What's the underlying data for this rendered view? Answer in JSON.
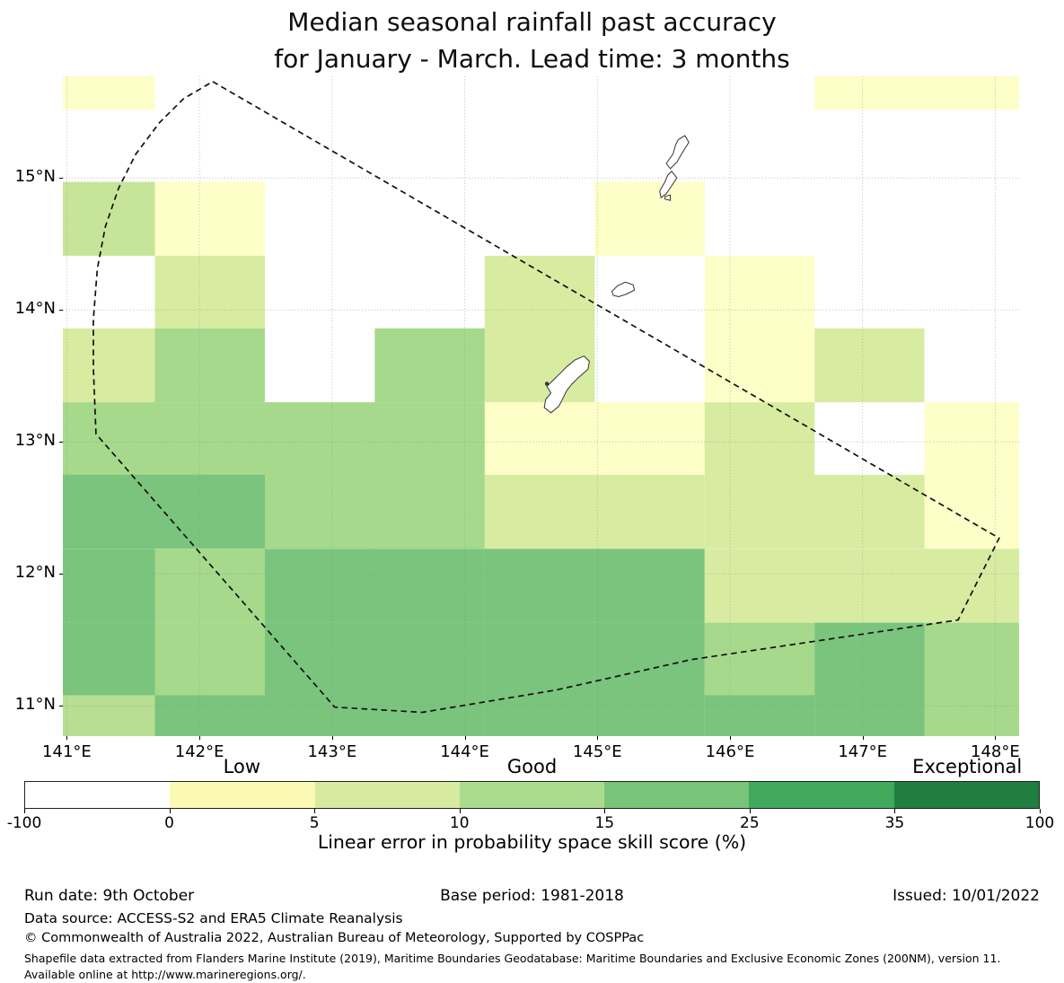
{
  "title": {
    "line1": "Median seasonal rainfall past accuracy",
    "line2": "for January - March. Lead time: 3 months"
  },
  "chart_data": {
    "type": "heatmap",
    "title": "Median seasonal rainfall past accuracy for January - March. Lead time: 3 months",
    "lon_range": [
      140.97,
      148.18
    ],
    "lat_range": [
      10.77,
      15.77
    ],
    "grid_lons": [
      141,
      142,
      143,
      144,
      145,
      146,
      147,
      148
    ],
    "grid_lats": [
      11,
      12,
      13,
      14,
      15
    ],
    "x_tick_labels": [
      "141°E",
      "142°E",
      "143°E",
      "144°E",
      "145°E",
      "146°E",
      "147°E",
      "148°E"
    ],
    "y_tick_labels": [
      "11°N",
      "12°N",
      "13°N",
      "14°N",
      "15°N"
    ],
    "col_edges_lon": [
      140.97,
      141.664,
      142.493,
      143.322,
      144.151,
      144.98,
      145.809,
      146.638,
      147.466,
      148.18
    ],
    "row_edges_lat": [
      15.77,
      15.52,
      14.97,
      14.41,
      13.86,
      13.3,
      12.75,
      12.19,
      11.63,
      11.08,
      10.77
    ],
    "palette": {
      "W": "#ffffff",
      "Y": "#fefec9",
      "G1": "#d7eca1",
      "G1b": "#c7e598",
      "G2": "#a6d98c",
      "G2b": "#b7de92",
      "G3": "#7bc47d"
    },
    "skill_bins_percent": {
      "W": "< 0",
      "Y": "0-5",
      "G1": "5-10",
      "G1b": "5-10",
      "G2": "10-15",
      "G2b": "10-15",
      "G3": "15-25"
    },
    "cells": [
      [
        "Y",
        "W",
        "W",
        "W",
        "W",
        "W",
        "W",
        "Y",
        "Y"
      ],
      [
        "W",
        "W",
        "W",
        "W",
        "W",
        "W",
        "W",
        "W",
        "W"
      ],
      [
        "G1b",
        "Y",
        "W",
        "W",
        "W",
        "Y",
        "W",
        "W",
        "W"
      ],
      [
        "W",
        "G1",
        "W",
        "W",
        "G1",
        "W",
        "Y",
        "W",
        "W"
      ],
      [
        "G1",
        "G2",
        "W",
        "G2",
        "G1",
        "W",
        "Y",
        "G1",
        "W"
      ],
      [
        "G2",
        "G2",
        "G2",
        "G2",
        "Y",
        "Y",
        "G1",
        "W",
        "Y"
      ],
      [
        "G3",
        "G3",
        "G2",
        "G2",
        "G1",
        "G1",
        "G1",
        "G1",
        "Y"
      ],
      [
        "G3",
        "G2",
        "G3",
        "G3",
        "G3",
        "G3",
        "G1",
        "G1",
        "G1"
      ],
      [
        "G3",
        "G2",
        "G3",
        "G3",
        "G3",
        "G3",
        "G2",
        "G3",
        "G2"
      ],
      [
        "G2b",
        "G3",
        "G3",
        "G3",
        "G3",
        "G3",
        "G3",
        "G3",
        "G2"
      ]
    ],
    "eez_boundary_lonlat": [
      [
        142.1,
        15.73
      ],
      [
        148.03,
        12.27
      ],
      [
        147.72,
        11.65
      ],
      [
        145.71,
        11.35
      ],
      [
        144.69,
        11.12
      ],
      [
        143.68,
        10.95
      ],
      [
        143.02,
        10.99
      ],
      [
        141.22,
        13.06
      ],
      [
        141.2,
        13.56
      ],
      [
        141.2,
        13.93
      ],
      [
        141.23,
        14.31
      ],
      [
        141.29,
        14.63
      ],
      [
        141.39,
        14.92
      ],
      [
        141.52,
        15.18
      ],
      [
        141.7,
        15.42
      ],
      [
        141.88,
        15.6
      ]
    ],
    "islands": {
      "guam": [
        [
          144.9,
          13.65
        ],
        [
          144.94,
          13.61
        ],
        [
          144.93,
          13.55
        ],
        [
          144.86,
          13.49
        ],
        [
          144.81,
          13.44
        ],
        [
          144.77,
          13.39
        ],
        [
          144.74,
          13.33
        ],
        [
          144.71,
          13.27
        ],
        [
          144.65,
          13.22
        ],
        [
          144.6,
          13.26
        ],
        [
          144.61,
          13.32
        ],
        [
          144.65,
          13.37
        ],
        [
          144.62,
          13.42
        ],
        [
          144.67,
          13.47
        ],
        [
          144.72,
          13.52
        ],
        [
          144.77,
          13.57
        ],
        [
          144.83,
          13.62
        ]
      ],
      "saipan": [
        [
          145.61,
          15.29
        ],
        [
          145.66,
          15.32
        ],
        [
          145.69,
          15.27
        ],
        [
          145.64,
          15.19
        ],
        [
          145.6,
          15.12
        ],
        [
          145.55,
          15.07
        ],
        [
          145.52,
          15.11
        ],
        [
          145.57,
          15.18
        ],
        [
          145.59,
          15.25
        ]
      ],
      "tinian": [
        [
          145.56,
          15.05
        ],
        [
          145.6,
          15.0
        ],
        [
          145.56,
          14.94
        ],
        [
          145.52,
          14.88
        ],
        [
          145.48,
          14.85
        ],
        [
          145.47,
          14.9
        ],
        [
          145.51,
          14.97
        ],
        [
          145.53,
          15.02
        ]
      ],
      "aguijan": [
        [
          145.51,
          14.86
        ],
        [
          145.55,
          14.87
        ],
        [
          145.55,
          14.83
        ],
        [
          145.51,
          14.84
        ]
      ],
      "rota": [
        [
          145.11,
          14.14
        ],
        [
          145.15,
          14.18
        ],
        [
          145.21,
          14.21
        ],
        [
          145.27,
          14.19
        ],
        [
          145.28,
          14.15
        ],
        [
          145.22,
          14.12
        ],
        [
          145.16,
          14.1
        ],
        [
          145.12,
          14.11
        ]
      ]
    },
    "guam_dot_lonlat": [
      144.62,
      13.44
    ]
  },
  "colorbar": {
    "tick_labels": [
      "-100",
      "0",
      "5",
      "10",
      "15",
      "25",
      "35",
      "100"
    ],
    "segment_colors": [
      "#ffffff",
      "#fafab5",
      "#d6eb9f",
      "#abdc8e",
      "#78c478",
      "#40a95c",
      "#217e40"
    ],
    "band_labels": [
      {
        "text": "Low",
        "segment": 1
      },
      {
        "text": "Good",
        "segment": 3
      },
      {
        "text": "Exceptional",
        "segment": 6
      }
    ],
    "caption": "Linear error in probability space skill score (%)"
  },
  "footer": {
    "run_date": "Run date: 9th October",
    "base_period": "Base period: 1981-2018",
    "issued": "Issued: 10/01/2022",
    "data_source": "Data source: ACCESS-S2 and ERA5 Climate Reanalysis",
    "copyright": "© Commonwealth of Australia 2022, Australian Bureau of Meteorology, Supported by COSPPac",
    "shapefile_note": "Shapefile data extracted from Flanders Marine Institute (2019), Maritime Boundaries Geodatabase: Maritime Boundaries and Exclusive Economic Zones (200NM), version 11. Available online at http://www.marineregions.org/."
  }
}
